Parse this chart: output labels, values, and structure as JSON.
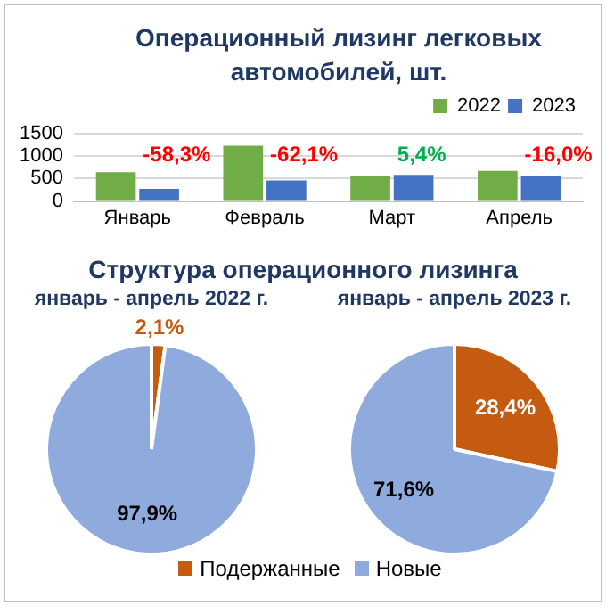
{
  "chart_data": [
    {
      "type": "bar",
      "title": "Операционный лизинг легковых автомобилей, шт.",
      "categories": [
        "Январь",
        "Февраль",
        "Март",
        "Апрель"
      ],
      "series": [
        {
          "name": "2022",
          "color": "#70ad47",
          "values": [
            640,
            1230,
            550,
            670
          ]
        },
        {
          "name": "2023",
          "color": "#4472c4",
          "values": [
            270,
            460,
            580,
            560
          ]
        }
      ],
      "ylim": [
        0,
        1500
      ],
      "yticks": [
        0,
        500,
        1000,
        1500
      ],
      "grid": "y",
      "legend": "top right",
      "annotations": [
        "-58,3%",
        "-62,1%",
        "5,4%",
        "-16,0%"
      ]
    },
    {
      "type": "pie",
      "title": "Структура операционного лизинга",
      "subtitle": "январь - апрель 2022 г.",
      "categories": [
        "Подержанные",
        "Новые"
      ],
      "values": [
        2.1,
        97.9
      ],
      "value_labels": [
        "2,1%",
        "97,9%"
      ],
      "colors": [
        "#c55a11",
        "#8faadc"
      ],
      "legend": "bottom"
    },
    {
      "type": "pie",
      "subtitle": "январь - апрель 2023 г.",
      "categories": [
        null,
        null
      ],
      "values": [
        28.4,
        71.6
      ],
      "value_labels": [
        "28,4%",
        "71,6%"
      ],
      "colors": [
        "#c55a11",
        "#8faadc"
      ]
    }
  ]
}
